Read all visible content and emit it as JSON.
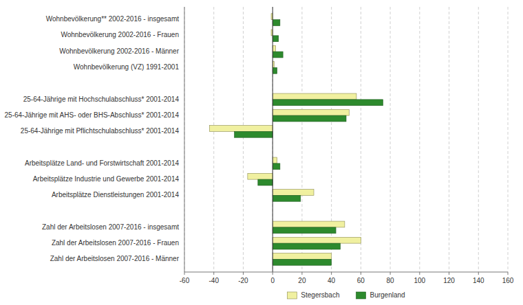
{
  "chart_data": {
    "type": "bar",
    "orientation": "horizontal",
    "categories": [
      "Wohnbevölkerung** 2002-2016 - insgesamt",
      "Wohnbevölkerung 2002-2016 - Frauen",
      "Wohnbevölkerung 2002-2016 - Männer",
      "Wohnbevölkerung (VZ) 1991-2001",
      null,
      "25-64-Jährige mit Hochschulabschluss* 2001-2014",
      "25-64-Jährige mit AHS- oder BHS-Abschluss* 2001-2014",
      "25-64-Jährige mit Pflichtschulabschluss* 2001-2014",
      null,
      "Arbeitsplätze Land- und Forstwirtschaft 2001-2014",
      "Arbeitsplätze Industrie und Gewerbe 2001-2014",
      "Arbeitsplätze Dienstleistungen 2001-2014",
      null,
      "Zahl der Arbeitslosen 2007-2016 - insgesamt",
      "Zahl der Arbeitslosen 2007-2016 - Frauen",
      "Zahl der Arbeitslosen 2007-2016 - Männer"
    ],
    "series": [
      {
        "name": "Stegersbach",
        "color": "#f0f0a0",
        "values": [
          -1,
          -1,
          2,
          1,
          null,
          57,
          52,
          -43,
          null,
          3,
          -17,
          28,
          null,
          49,
          60,
          40
        ]
      },
      {
        "name": "Burgenland",
        "color": "#2d8a2d",
        "values": [
          5,
          4,
          7,
          3,
          null,
          75,
          50,
          -26,
          null,
          5,
          -10,
          19,
          null,
          43,
          46,
          40
        ]
      }
    ],
    "xlim": [
      -60,
      160
    ],
    "xticks": [
      -60,
      -40,
      -20,
      0,
      20,
      40,
      60,
      80,
      100,
      120,
      140,
      160
    ],
    "grid": true,
    "legend": "bottom"
  }
}
